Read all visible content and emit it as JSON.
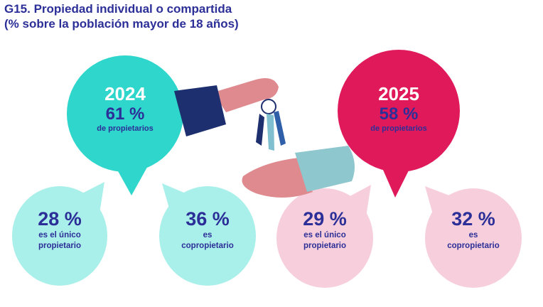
{
  "title": {
    "line1": "G15. Propiedad individual o compartida",
    "line2": "(% sobre la población mayor de 18 años)"
  },
  "colors": {
    "y2024": "#2ed6cb",
    "y2024_light": "#a9efea",
    "y2025": "#e0195b",
    "y2025_light": "#f7cfdc",
    "text": "#2c2f97"
  },
  "groups": [
    {
      "year": "2024",
      "total": "61 %",
      "total_label": "de propietarios",
      "parts": [
        {
          "value": "28 %",
          "label1": "es el único",
          "label2": "propietario"
        },
        {
          "value": "36 %",
          "label1": "es",
          "label2": "copropietario"
        }
      ]
    },
    {
      "year": "2025",
      "total": "58 %",
      "total_label": "de propietarios",
      "parts": [
        {
          "value": "29 %",
          "label1": "es el único",
          "label2": "propietario"
        },
        {
          "value": "32 %",
          "label1": "es",
          "label2": "copropietario"
        }
      ]
    }
  ]
}
